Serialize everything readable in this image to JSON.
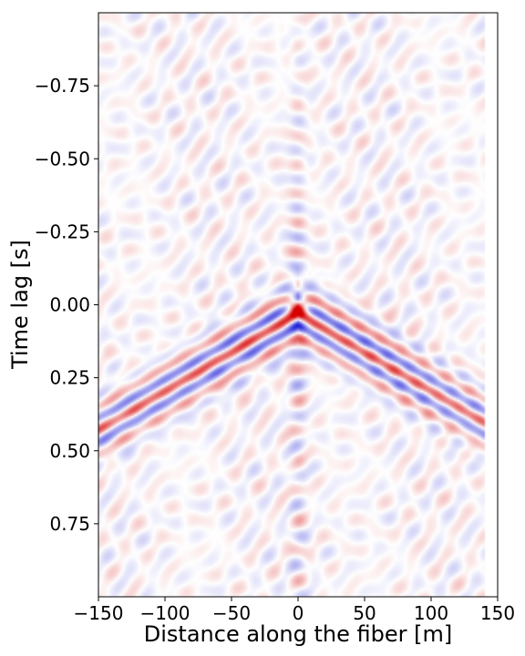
{
  "chart_data": {
    "type": "heatmap",
    "title": "",
    "xlabel": "Distance along the fiber [m]",
    "ylabel": "Time lag [s]",
    "xlim": [
      -150,
      150
    ],
    "ylim": [
      -1.0,
      1.0
    ],
    "y_inverted": true,
    "x_ticks": [
      -150,
      -100,
      -50,
      0,
      50,
      100,
      150
    ],
    "x_tick_labels": [
      "−150",
      "−100",
      "−50",
      "0",
      "50",
      "100",
      "150"
    ],
    "y_ticks": [
      -0.75,
      -0.5,
      -0.25,
      0.0,
      0.25,
      0.5,
      0.75
    ],
    "y_tick_labels": [
      "−0.75",
      "−0.50",
      "−0.25",
      "0.00",
      "0.25",
      "0.50",
      "0.75"
    ],
    "colormap": "seismic (blue-white-red)",
    "colors": {
      "positive": "#d60000",
      "negative": "#2020d8",
      "zero": "#ffffff"
    },
    "data_x_extent": [
      -150,
      140
    ],
    "peak": {
      "x": 0,
      "y": 0.0,
      "sign": "positive"
    },
    "wavefronts": [
      {
        "side": "left",
        "from": [
          0,
          0.02
        ],
        "to": [
          -150,
          0.42
        ]
      },
      {
        "side": "right",
        "from": [
          0,
          0.02
        ],
        "to": [
          140,
          0.42
        ]
      }
    ],
    "grid": false,
    "legend": "none"
  }
}
